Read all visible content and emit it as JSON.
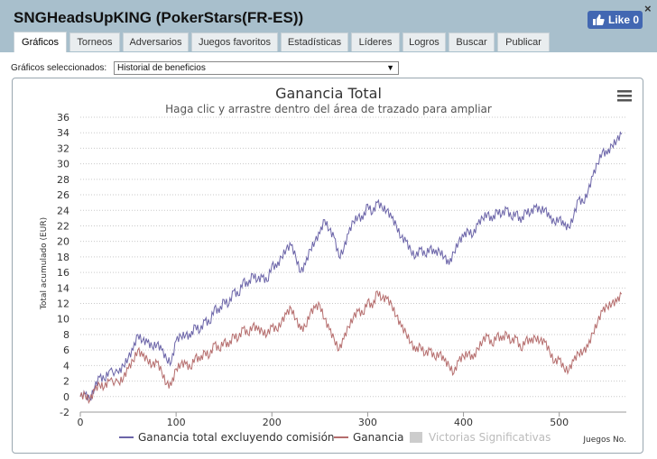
{
  "window": {
    "title": "SNGHeadsUpKING (PokerStars(FR-ES))",
    "like_label": "Like 0",
    "close_label": "×"
  },
  "tabs": [
    {
      "label": "Gráficos",
      "active": true
    },
    {
      "label": "Torneos"
    },
    {
      "label": "Adversarios"
    },
    {
      "label": "Juegos favoritos"
    },
    {
      "label": "Estadísticas"
    },
    {
      "label": "Líderes"
    },
    {
      "label": "Logros"
    },
    {
      "label": "Buscar"
    },
    {
      "label": "Publicar"
    }
  ],
  "selector": {
    "label": "Gráficos seleccionados:",
    "value": "Historial de beneficios"
  },
  "chart_data": {
    "type": "line",
    "title": "Ganancia Total",
    "subtitle": "Haga clic y arrastre dentro del área de trazado para ampliar",
    "xlabel": "Juegos No.",
    "ylabel": "Total acumulado (EUR)",
    "xlim": [
      0,
      570
    ],
    "ylim": [
      -2,
      36
    ],
    "x_ticks": [
      0,
      100,
      200,
      300,
      400,
      500
    ],
    "y_ticks": [
      -2,
      0,
      2,
      4,
      6,
      8,
      10,
      12,
      14,
      16,
      18,
      20,
      22,
      24,
      26,
      28,
      30,
      32,
      34,
      36
    ],
    "grid": true,
    "legend": "bottom",
    "series": [
      {
        "name": "Ganancia total excluyendo comisión",
        "color": "#6b64a8",
        "points": [
          [
            0,
            0
          ],
          [
            5,
            0.3
          ],
          [
            10,
            -0.4
          ],
          [
            15,
            1.2
          ],
          [
            20,
            2.5
          ],
          [
            25,
            2.2
          ],
          [
            30,
            3.3
          ],
          [
            40,
            3.0
          ],
          [
            45,
            4.0
          ],
          [
            50,
            5.0
          ],
          [
            55,
            6.0
          ],
          [
            60,
            8.0
          ],
          [
            65,
            7.2
          ],
          [
            70,
            7.0
          ],
          [
            75,
            6.4
          ],
          [
            80,
            6.8
          ],
          [
            85,
            6.0
          ],
          [
            90,
            4.8
          ],
          [
            95,
            4.4
          ],
          [
            100,
            7.2
          ],
          [
            105,
            7.8
          ],
          [
            110,
            8.0
          ],
          [
            115,
            7.6
          ],
          [
            120,
            9.2
          ],
          [
            125,
            8.4
          ],
          [
            130,
            9.8
          ],
          [
            135,
            9.4
          ],
          [
            140,
            11.5
          ],
          [
            145,
            10.8
          ],
          [
            150,
            12.5
          ],
          [
            155,
            11.8
          ],
          [
            160,
            13.6
          ],
          [
            165,
            13.0
          ],
          [
            170,
            15.0
          ],
          [
            175,
            14.2
          ],
          [
            180,
            15.8
          ],
          [
            185,
            15.0
          ],
          [
            190,
            15.4
          ],
          [
            195,
            14.8
          ],
          [
            200,
            17.0
          ],
          [
            205,
            16.6
          ],
          [
            210,
            18.0
          ],
          [
            215,
            19.0
          ],
          [
            220,
            19.5
          ],
          [
            225,
            18.0
          ],
          [
            230,
            16.0
          ],
          [
            235,
            17.0
          ],
          [
            240,
            19.0
          ],
          [
            245,
            20.0
          ],
          [
            250,
            21.0
          ],
          [
            255,
            22.8
          ],
          [
            260,
            21.5
          ],
          [
            265,
            20.5
          ],
          [
            270,
            18.0
          ],
          [
            275,
            19.0
          ],
          [
            280,
            21.0
          ],
          [
            285,
            22.6
          ],
          [
            290,
            23.2
          ],
          [
            295,
            22.8
          ],
          [
            300,
            24.8
          ],
          [
            305,
            23.6
          ],
          [
            310,
            25.0
          ],
          [
            315,
            24.4
          ],
          [
            320,
            24.0
          ],
          [
            325,
            23.0
          ],
          [
            330,
            22.0
          ],
          [
            335,
            20.5
          ],
          [
            340,
            20.0
          ],
          [
            345,
            18.8
          ],
          [
            350,
            18.0
          ],
          [
            355,
            19.0
          ],
          [
            360,
            18.2
          ],
          [
            365,
            19.2
          ],
          [
            370,
            18.4
          ],
          [
            375,
            18.8
          ],
          [
            380,
            18.0
          ],
          [
            385,
            17.0
          ],
          [
            390,
            18.6
          ],
          [
            395,
            20.0
          ],
          [
            400,
            20.6
          ],
          [
            405,
            21.4
          ],
          [
            410,
            20.8
          ],
          [
            415,
            22.2
          ],
          [
            420,
            23.0
          ],
          [
            425,
            23.6
          ],
          [
            430,
            22.6
          ],
          [
            435,
            24.0
          ],
          [
            440,
            23.4
          ],
          [
            445,
            24.2
          ],
          [
            450,
            23.0
          ],
          [
            455,
            23.8
          ],
          [
            460,
            22.4
          ],
          [
            465,
            24.0
          ],
          [
            470,
            23.6
          ],
          [
            475,
            24.4
          ],
          [
            480,
            24.0
          ],
          [
            485,
            24.2
          ],
          [
            490,
            23.0
          ],
          [
            495,
            22.4
          ],
          [
            500,
            23.0
          ],
          [
            505,
            22.0
          ],
          [
            510,
            21.8
          ],
          [
            515,
            23.2
          ],
          [
            520,
            25.4
          ],
          [
            525,
            25.0
          ],
          [
            530,
            26.4
          ],
          [
            535,
            28.4
          ],
          [
            540,
            30.0
          ],
          [
            545,
            31.6
          ],
          [
            550,
            31.2
          ],
          [
            555,
            32.4
          ],
          [
            560,
            33.0
          ],
          [
            565,
            33.8
          ]
        ]
      },
      {
        "name": "Ganancia",
        "color": "#b56d6d",
        "points": [
          [
            0,
            0
          ],
          [
            5,
            0.2
          ],
          [
            10,
            -0.5
          ],
          [
            15,
            0.8
          ],
          [
            20,
            1.6
          ],
          [
            25,
            1.2
          ],
          [
            30,
            2.0
          ],
          [
            40,
            1.8
          ],
          [
            45,
            2.4
          ],
          [
            50,
            3.6
          ],
          [
            55,
            4.6
          ],
          [
            60,
            6.0
          ],
          [
            65,
            5.2
          ],
          [
            70,
            4.8
          ],
          [
            75,
            4.0
          ],
          [
            80,
            4.4
          ],
          [
            85,
            3.2
          ],
          [
            90,
            1.6
          ],
          [
            95,
            1.4
          ],
          [
            100,
            3.6
          ],
          [
            105,
            4.2
          ],
          [
            110,
            4.2
          ],
          [
            115,
            3.6
          ],
          [
            120,
            5.2
          ],
          [
            125,
            4.6
          ],
          [
            130,
            5.8
          ],
          [
            135,
            5.2
          ],
          [
            140,
            6.8
          ],
          [
            145,
            6.0
          ],
          [
            150,
            7.2
          ],
          [
            155,
            6.4
          ],
          [
            160,
            8.0
          ],
          [
            165,
            7.4
          ],
          [
            170,
            8.8
          ],
          [
            175,
            8.0
          ],
          [
            180,
            9.2
          ],
          [
            185,
            8.6
          ],
          [
            190,
            8.4
          ],
          [
            195,
            8.0
          ],
          [
            200,
            9.0
          ],
          [
            205,
            8.6
          ],
          [
            210,
            9.6
          ],
          [
            215,
            10.6
          ],
          [
            220,
            11.4
          ],
          [
            225,
            10.0
          ],
          [
            230,
            8.6
          ],
          [
            235,
            9.0
          ],
          [
            240,
            10.8
          ],
          [
            245,
            11.4
          ],
          [
            250,
            11.8
          ],
          [
            255,
            10.0
          ],
          [
            260,
            8.6
          ],
          [
            265,
            7.4
          ],
          [
            270,
            6.0
          ],
          [
            275,
            7.4
          ],
          [
            280,
            9.0
          ],
          [
            285,
            10.2
          ],
          [
            290,
            11.0
          ],
          [
            295,
            10.6
          ],
          [
            300,
            12.4
          ],
          [
            305,
            11.4
          ],
          [
            310,
            13.6
          ],
          [
            315,
            12.6
          ],
          [
            320,
            12.6
          ],
          [
            325,
            11.8
          ],
          [
            330,
            10.4
          ],
          [
            335,
            9.0
          ],
          [
            340,
            8.2
          ],
          [
            345,
            7.0
          ],
          [
            350,
            5.8
          ],
          [
            355,
            6.6
          ],
          [
            360,
            5.4
          ],
          [
            365,
            6.0
          ],
          [
            370,
            5.0
          ],
          [
            375,
            5.6
          ],
          [
            380,
            4.6
          ],
          [
            385,
            4.0
          ],
          [
            390,
            3.0
          ],
          [
            395,
            4.6
          ],
          [
            400,
            5.2
          ],
          [
            405,
            5.6
          ],
          [
            410,
            4.8
          ],
          [
            415,
            6.2
          ],
          [
            420,
            7.2
          ],
          [
            425,
            7.8
          ],
          [
            430,
            6.6
          ],
          [
            435,
            8.0
          ],
          [
            440,
            7.2
          ],
          [
            445,
            8.2
          ],
          [
            450,
            7.0
          ],
          [
            455,
            7.6
          ],
          [
            460,
            6.0
          ],
          [
            465,
            7.4
          ],
          [
            470,
            7.0
          ],
          [
            475,
            7.6
          ],
          [
            480,
            7.2
          ],
          [
            485,
            7.0
          ],
          [
            490,
            5.8
          ],
          [
            495,
            4.4
          ],
          [
            500,
            4.8
          ],
          [
            505,
            3.6
          ],
          [
            510,
            3.4
          ],
          [
            515,
            4.6
          ],
          [
            520,
            5.6
          ],
          [
            525,
            5.8
          ],
          [
            530,
            6.4
          ],
          [
            535,
            8.2
          ],
          [
            540,
            9.6
          ],
          [
            545,
            11.0
          ],
          [
            550,
            11.6
          ],
          [
            555,
            12.0
          ],
          [
            560,
            12.2
          ],
          [
            565,
            13.2
          ]
        ]
      },
      {
        "name": "Victorias Significativas",
        "color": "#cccccc",
        "points": []
      }
    ]
  }
}
